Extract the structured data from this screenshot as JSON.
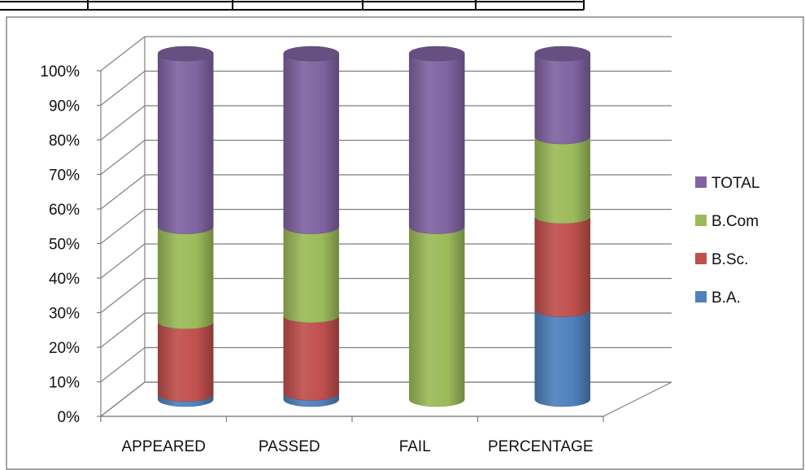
{
  "chart_data": {
    "type": "bar",
    "subtype": "stacked-100-percent-3d-cylinder",
    "categories": [
      "APPEARED",
      "PASSED",
      "FAIL",
      "PERCENTAGE"
    ],
    "series": [
      {
        "name": "B.A.",
        "color": "#4f81bd",
        "values": [
          1.5,
          1.8,
          0,
          26
        ]
      },
      {
        "name": "B.Sc.",
        "color": "#c0504d",
        "values": [
          21,
          22.5,
          0,
          27
        ]
      },
      {
        "name": "B.Com",
        "color": "#9bbb59",
        "values": [
          27.5,
          25.7,
          50,
          23
        ]
      },
      {
        "name": "TOTAL",
        "color": "#8064a2",
        "values": [
          50,
          50,
          50,
          24
        ]
      }
    ],
    "y_ticks": [
      "0%",
      "10%",
      "20%",
      "30%",
      "40%",
      "50%",
      "60%",
      "70%",
      "80%",
      "90%",
      "100%"
    ],
    "ylim": [
      0,
      100
    ],
    "grid": true,
    "legend_position": "right",
    "legend_order": [
      "TOTAL",
      "B.Com",
      "B.Sc.",
      "B.A."
    ]
  }
}
